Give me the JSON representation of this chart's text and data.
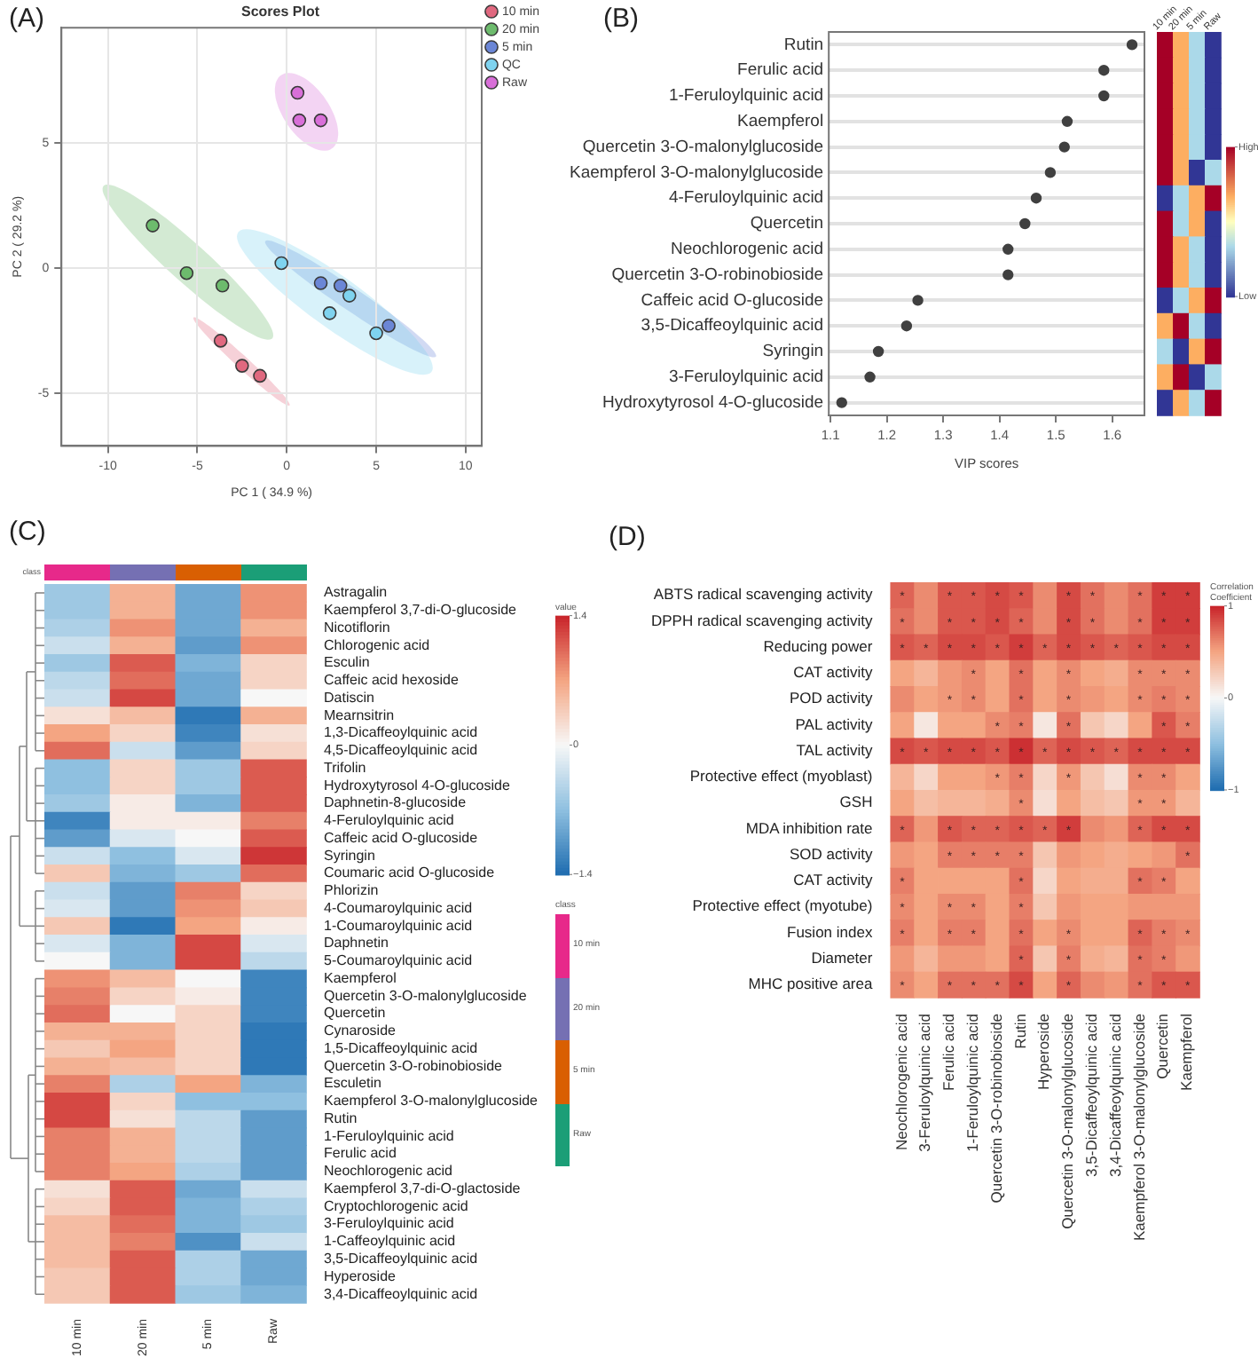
{
  "chart_data": [
    {
      "type": "scatter",
      "title": "Scores Plot",
      "xlabel": "PC 1 ( 34.9 %)",
      "ylabel": "PC 2 ( 29.2 %)",
      "annotations": [
        "(A)"
      ],
      "xlim": [
        -12.6,
        10.9
      ],
      "ylim": [
        -7.1,
        9.6
      ],
      "xticks": [
        -10,
        -5,
        0,
        5,
        10
      ],
      "yticks": [
        -5,
        0,
        5
      ],
      "grid": true,
      "legend": "top right",
      "marker": "circle",
      "series": [
        {
          "name": "10 min",
          "color": "#e0687f",
          "x": [
            -3.7,
            -2.5,
            -1.5
          ],
          "values": [
            -2.9,
            -3.9,
            -4.3
          ]
        },
        {
          "name": "20 min",
          "color": "#6dbb6d",
          "x": [
            -7.5,
            -5.6,
            -3.6
          ],
          "values": [
            1.7,
            -0.2,
            -0.7
          ]
        },
        {
          "name": "5 min",
          "color": "#6b86d6",
          "x": [
            1.9,
            3.0,
            5.7
          ],
          "values": [
            -0.6,
            -0.7,
            -2.3
          ]
        },
        {
          "name": "QC",
          "color": "#7fd3ef",
          "x": [
            -0.3,
            3.5,
            2.4,
            5.0
          ],
          "values": [
            0.2,
            -1.1,
            -1.8,
            -2.6
          ]
        },
        {
          "name": "Raw",
          "color": "#d86fd8",
          "x": [
            0.6,
            0.7,
            1.9
          ],
          "values": [
            7.0,
            5.9,
            5.9
          ]
        }
      ]
    },
    {
      "type": "scatter",
      "orientation": "horizontal",
      "annotations": [
        "(B)"
      ],
      "xlabel": "VIP scores",
      "xlim": [
        1.097,
        1.657
      ],
      "xticks": [
        1.1,
        1.2,
        1.3,
        1.4,
        1.5,
        1.6
      ],
      "grid": "y",
      "marker": "circle",
      "color": "#404040",
      "categories": [
        "Rutin",
        "Ferulic acid",
        "1-Feruloylquinic acid",
        "Kaempferol",
        "Quercetin 3-O-malonylglucoside",
        "Kaempferol 3-O-malonylglucoside",
        "4-Feruloylquinic acid",
        "Quercetin",
        "Neochlorogenic acid",
        "Quercetin 3-O-robinobioside",
        "Caffeic acid O-glucoside",
        "3,5-Dicaffeoylquinic acid",
        "Syringin",
        "3-Feruloylquinic acid",
        "Hydroxytyrosol 4-O-glucoside"
      ],
      "values": [
        1.635,
        1.585,
        1.585,
        1.52,
        1.515,
        1.49,
        1.465,
        1.445,
        1.415,
        1.415,
        1.255,
        1.235,
        1.185,
        1.17,
        1.12
      ]
    },
    {
      "type": "heatmap",
      "categories": [
        "10 min",
        "20 min",
        "5 min",
        "Raw"
      ],
      "y_categories": [
        null,
        null,
        null,
        null,
        null,
        null,
        null,
        null,
        null,
        null,
        null,
        null,
        null,
        null,
        null
      ],
      "clim": [
        0,
        3
      ],
      "cticks": [
        {
          "value": 3,
          "label": "High"
        },
        {
          "value": 0,
          "label": "Low"
        }
      ],
      "cells": [
        [
          3,
          2,
          1,
          0
        ],
        [
          3,
          2,
          1,
          0
        ],
        [
          3,
          2,
          1,
          0
        ],
        [
          3,
          2,
          1,
          0
        ],
        [
          3,
          2,
          1,
          0
        ],
        [
          3,
          2,
          0,
          1
        ],
        [
          0,
          1,
          2,
          3
        ],
        [
          3,
          1,
          2,
          0
        ],
        [
          3,
          2,
          1,
          0
        ],
        [
          3,
          2,
          1,
          0
        ],
        [
          0,
          1,
          2,
          3
        ],
        [
          2,
          3,
          1,
          0
        ],
        [
          1,
          0,
          2,
          3
        ],
        [
          2,
          3,
          0,
          1
        ],
        [
          0,
          2,
          1,
          3
        ]
      ]
    },
    {
      "type": "heatmap",
      "annotations": [
        "(C)"
      ],
      "categories": [
        "10 min",
        "20 min",
        "5 min",
        "Raw"
      ],
      "colors": [
        "#e7298a",
        "#7570b3",
        "#d95f02",
        "#1b9e77"
      ],
      "legend_title": "class",
      "clabel": "value",
      "clim": [
        -1.4,
        1.4
      ],
      "cticks": [
        1.4,
        0,
        {
          "value": -1.4,
          "label": "−1.4"
        }
      ],
      "y_categories": [
        "Astragalin",
        "Kaempferol 3,7-di-O-glucoside",
        "Nicotiflorin",
        "Chlorogenic acid",
        "Esculin",
        "Caffeic acid hexoside",
        "Datiscin",
        "Mearnsitrin",
        "1,3-Dicaffeoylquinic acid",
        "4,5-Dicaffeoylquinic acid",
        "Trifolin",
        "Hydroxytyrosol 4-O-glucoside",
        "Daphnetin-8-glucoside",
        "4-Feruloylquinic acid",
        "Caffeic acid O-glucoside",
        "Syringin",
        "Coumaric acid O-glucoside",
        "Phlorizin",
        "4-Coumaroylquinic acid",
        "1-Coumaroylquinic acid",
        "Daphnetin",
        "5-Coumaroylquinic acid",
        "Kaempferol",
        "Quercetin 3-O-malonylglucoside",
        "Quercetin",
        "Cynaroside",
        "1,5-Dicaffeoylquinic acid",
        "Quercetin 3-O-robinobioside",
        "Esculetin",
        "Kaempferol 3-O-malonylglucoside",
        "Rutin",
        "1-Feruloylquinic acid",
        "Ferulic acid",
        "Neochlorogenic acid",
        "Kaempferol 3,7-di-O-glactoside",
        "Cryptochlorogenic acid",
        "3-Feruloylquinic acid",
        "1-Caffeoylquinic acid",
        "3,5-Dicaffeoylquinic acid",
        "Hyperoside",
        "3,4-Dicaffeoylquinic acid"
      ],
      "cells": [
        [
          -0.6,
          0.6,
          -0.9,
          0.8
        ],
        [
          -0.6,
          0.6,
          -0.9,
          0.8
        ],
        [
          -0.5,
          0.8,
          -0.9,
          0.6
        ],
        [
          -0.3,
          0.6,
          -1.0,
          0.8
        ],
        [
          -0.6,
          1.1,
          -0.8,
          0.3
        ],
        [
          -0.4,
          1.0,
          -0.9,
          0.3
        ],
        [
          -0.3,
          1.2,
          -0.9,
          0.0
        ],
        [
          0.2,
          0.5,
          -1.3,
          0.6
        ],
        [
          0.7,
          0.3,
          -1.2,
          0.2
        ],
        [
          1.0,
          -0.3,
          -1.0,
          0.3
        ],
        [
          -0.7,
          0.3,
          -0.6,
          1.1
        ],
        [
          -0.7,
          0.3,
          -0.6,
          1.1
        ],
        [
          -0.6,
          0.1,
          -0.8,
          1.1
        ],
        [
          -1.2,
          0.1,
          0.1,
          0.9
        ],
        [
          -1.0,
          -0.2,
          0.0,
          1.1
        ],
        [
          -0.3,
          -0.7,
          -0.2,
          1.3
        ],
        [
          0.4,
          -0.8,
          -0.6,
          1.0
        ],
        [
          -0.3,
          -1.0,
          0.9,
          0.3
        ],
        [
          -0.2,
          -1.0,
          0.8,
          0.4
        ],
        [
          0.4,
          -1.3,
          0.7,
          0.1
        ],
        [
          -0.2,
          -0.8,
          1.2,
          -0.2
        ],
        [
          0.0,
          -0.8,
          1.2,
          -0.4
        ],
        [
          0.8,
          0.5,
          0.0,
          -1.2
        ],
        [
          0.9,
          0.3,
          0.1,
          -1.2
        ],
        [
          1.0,
          0.0,
          0.3,
          -1.2
        ],
        [
          0.6,
          0.6,
          0.3,
          -1.3
        ],
        [
          0.4,
          0.7,
          0.3,
          -1.3
        ],
        [
          0.6,
          0.5,
          0.3,
          -1.3
        ],
        [
          0.9,
          -0.5,
          0.7,
          -0.8
        ],
        [
          1.2,
          0.3,
          -0.7,
          -0.7
        ],
        [
          1.2,
          0.2,
          -0.4,
          -1.0
        ],
        [
          0.9,
          0.6,
          -0.4,
          -1.0
        ],
        [
          0.9,
          0.6,
          -0.4,
          -1.0
        ],
        [
          0.9,
          0.7,
          -0.5,
          -1.0
        ],
        [
          0.2,
          1.1,
          -0.9,
          -0.3
        ],
        [
          0.3,
          1.1,
          -0.8,
          -0.5
        ],
        [
          0.5,
          1.0,
          -0.8,
          -0.6
        ],
        [
          0.5,
          0.9,
          -1.1,
          -0.3
        ],
        [
          0.5,
          1.1,
          -0.5,
          -0.9
        ],
        [
          0.4,
          1.1,
          -0.5,
          -0.9
        ],
        [
          0.4,
          1.1,
          -0.6,
          -0.8
        ]
      ]
    },
    {
      "type": "heatmap",
      "annotations": [
        "(D)"
      ],
      "clabel": "Correlation Coefficient",
      "clim": [
        -1,
        1
      ],
      "cticks": [
        1,
        0,
        {
          "value": -1,
          "label": "−1"
        }
      ],
      "categories": [
        "Neochlorogenic acid",
        "3-Feruloylquinic acid",
        "Ferulic acid",
        "1-Feruloylquinic acid",
        "Quercetin 3-O-robinobioside",
        "Rutin",
        "Hyperoside",
        "Quercetin 3-O-malonylglucoside",
        "3,5-Dicaffeoylquinic acid",
        "3,4-Dicaffeoylquinic acid",
        "Kaempferol 3-O-malonylglucoside",
        "Quercetin",
        "Kaempferol"
      ],
      "y_categories": [
        "ABTS radical scavenging activity",
        "DPPH radical scavenging activity",
        "Reducing power",
        "CAT activity",
        "POD activity",
        "PAL activity",
        "TAL activity",
        "Protective effect (myoblast)",
        "GSH",
        "MDA inhibition rate",
        "SOD activity",
        "CAT activity",
        "Protective effect (myotube)",
        "Fusion index",
        "Diameter",
        "MHC positive area"
      ],
      "cells": [
        [
          0.75,
          0.6,
          0.8,
          0.8,
          0.85,
          0.8,
          0.6,
          0.85,
          0.7,
          0.6,
          0.7,
          0.9,
          0.9
        ],
        [
          0.7,
          0.6,
          0.8,
          0.8,
          0.85,
          0.75,
          0.6,
          0.85,
          0.7,
          0.6,
          0.7,
          0.9,
          0.9
        ],
        [
          0.8,
          0.75,
          0.85,
          0.85,
          0.8,
          0.9,
          0.75,
          0.85,
          0.8,
          0.75,
          0.8,
          0.85,
          0.85
        ],
        [
          0.5,
          0.4,
          0.55,
          0.6,
          0.5,
          0.7,
          0.5,
          0.6,
          0.5,
          0.45,
          0.6,
          0.6,
          0.6
        ],
        [
          0.6,
          0.5,
          0.55,
          0.6,
          0.5,
          0.7,
          0.5,
          0.6,
          0.55,
          0.5,
          0.6,
          0.65,
          0.6
        ],
        [
          0.5,
          0.1,
          0.5,
          0.5,
          0.6,
          0.65,
          0.1,
          0.7,
          0.3,
          0.2,
          0.5,
          0.8,
          0.65
        ],
        [
          0.85,
          0.8,
          0.85,
          0.85,
          0.8,
          0.95,
          0.75,
          0.85,
          0.8,
          0.75,
          0.85,
          0.85,
          0.85
        ],
        [
          0.4,
          0.2,
          0.5,
          0.5,
          0.55,
          0.65,
          0.2,
          0.55,
          0.3,
          0.15,
          0.6,
          0.6,
          0.5
        ],
        [
          0.5,
          0.35,
          0.4,
          0.4,
          0.45,
          0.6,
          0.15,
          0.5,
          0.35,
          0.3,
          0.55,
          0.55,
          0.4
        ],
        [
          0.75,
          0.55,
          0.8,
          0.75,
          0.75,
          0.8,
          0.75,
          0.9,
          0.6,
          0.55,
          0.75,
          0.85,
          0.85
        ],
        [
          0.55,
          0.5,
          0.65,
          0.65,
          0.65,
          0.65,
          0.3,
          0.55,
          0.5,
          0.45,
          0.5,
          0.55,
          0.7
        ],
        [
          0.65,
          0.5,
          0.5,
          0.5,
          0.5,
          0.7,
          0.2,
          0.5,
          0.45,
          0.45,
          0.7,
          0.65,
          0.5
        ],
        [
          0.6,
          0.5,
          0.6,
          0.6,
          0.5,
          0.65,
          0.3,
          0.55,
          0.5,
          0.5,
          0.55,
          0.55,
          0.55
        ],
        [
          0.65,
          0.5,
          0.65,
          0.65,
          0.5,
          0.7,
          0.5,
          0.6,
          0.5,
          0.5,
          0.75,
          0.65,
          0.6
        ],
        [
          0.55,
          0.4,
          0.55,
          0.55,
          0.5,
          0.75,
          0.3,
          0.65,
          0.45,
          0.4,
          0.7,
          0.65,
          0.55
        ],
        [
          0.6,
          0.5,
          0.7,
          0.7,
          0.7,
          0.85,
          0.5,
          0.75,
          0.6,
          0.55,
          0.7,
          0.8,
          0.8
        ]
      ],
      "cell_labels": [
        [
          "*",
          null,
          "*",
          "*",
          "*",
          "*",
          null,
          "*",
          "*",
          null,
          "*",
          "*",
          "*"
        ],
        [
          "*",
          null,
          "*",
          "*",
          "*",
          "*",
          null,
          "*",
          "*",
          null,
          "*",
          "*",
          "*"
        ],
        [
          "*",
          "*",
          "*",
          "*",
          "*",
          "*",
          "*",
          "*",
          "*",
          "*",
          "*",
          "*",
          "*"
        ],
        [
          null,
          null,
          null,
          "*",
          null,
          "*",
          null,
          "*",
          null,
          null,
          "*",
          "*",
          "*"
        ],
        [
          null,
          null,
          "*",
          "*",
          null,
          "*",
          null,
          "*",
          null,
          null,
          "*",
          "*",
          "*"
        ],
        [
          null,
          null,
          null,
          null,
          "*",
          "*",
          null,
          "*",
          null,
          null,
          null,
          "*",
          "*"
        ],
        [
          "*",
          "*",
          "*",
          "*",
          "*",
          "*",
          "*",
          "*",
          "*",
          "*",
          "*",
          "*",
          "*"
        ],
        [
          null,
          null,
          null,
          null,
          "*",
          "*",
          null,
          "*",
          null,
          null,
          "*",
          "*",
          null
        ],
        [
          null,
          null,
          null,
          null,
          null,
          "*",
          null,
          null,
          null,
          null,
          "*",
          "*",
          null
        ],
        [
          "*",
          null,
          "*",
          "*",
          "*",
          "*",
          "*",
          "*",
          null,
          null,
          "*",
          "*",
          "*"
        ],
        [
          null,
          null,
          "*",
          "*",
          "*",
          "*",
          null,
          null,
          null,
          null,
          null,
          null,
          "*"
        ],
        [
          "*",
          null,
          null,
          null,
          null,
          "*",
          null,
          null,
          null,
          null,
          "*",
          "*",
          null
        ],
        [
          "*",
          null,
          "*",
          "*",
          null,
          "*",
          null,
          null,
          null,
          null,
          null,
          null,
          null
        ],
        [
          "*",
          null,
          "*",
          "*",
          null,
          "*",
          null,
          "*",
          null,
          null,
          "*",
          "*",
          "*"
        ],
        [
          null,
          null,
          null,
          null,
          null,
          "*",
          null,
          "*",
          null,
          null,
          "*",
          "*",
          null
        ],
        [
          "*",
          null,
          "*",
          "*",
          "*",
          "*",
          null,
          "*",
          null,
          null,
          "*",
          "*",
          "*"
        ]
      ]
    }
  ]
}
